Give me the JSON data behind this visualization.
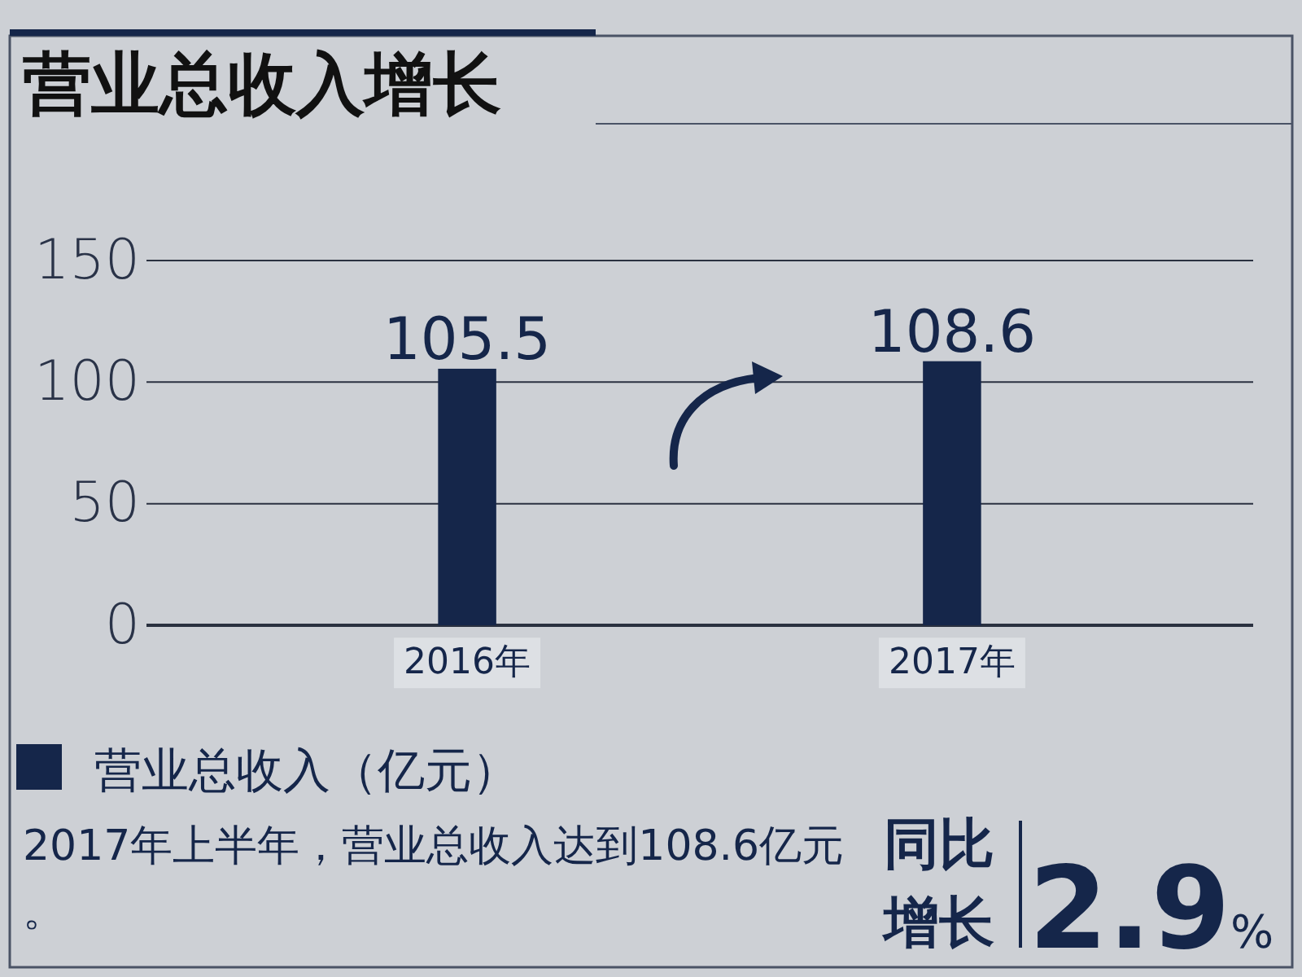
{
  "chart_data": {
    "type": "bar",
    "title": "营业总收入增长",
    "categories": [
      "2016年",
      "2017年"
    ],
    "series": [
      {
        "name": "营业总收入（亿元）",
        "color": "#15264a",
        "values": [
          105.5,
          108.6
        ]
      }
    ],
    "ylim": [
      0,
      150
    ],
    "yticks": [
      0,
      50,
      100,
      150
    ],
    "grid": "y",
    "data_labels": true,
    "legend": "bottom left",
    "annotations": [
      "2017年上半年，营业总收入达到108.6亿元。",
      "同比增长",
      "2.9%"
    ]
  }
}
